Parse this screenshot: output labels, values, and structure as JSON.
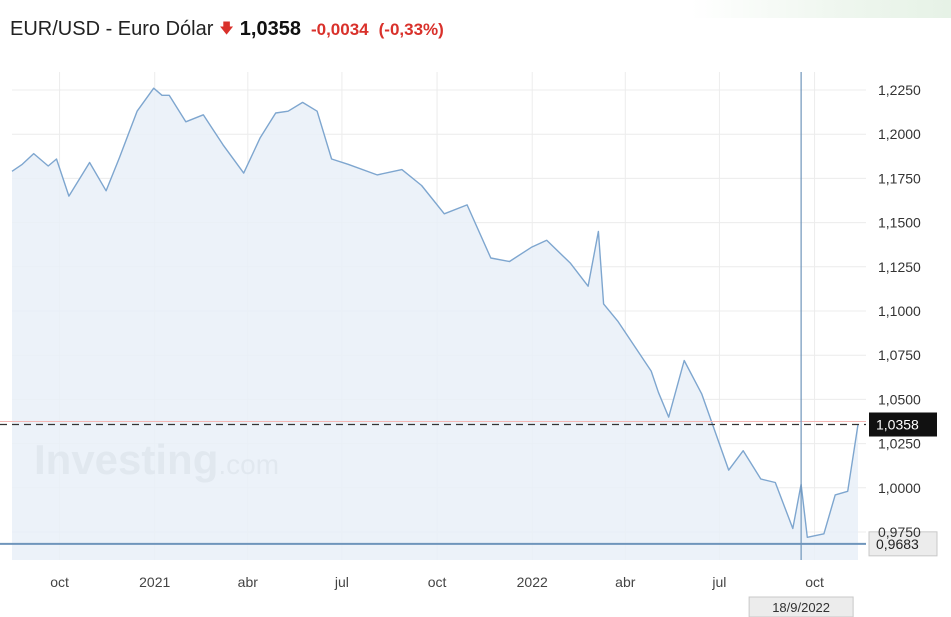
{
  "header": {
    "pair_name": "EUR/USD - Euro Dólar",
    "direction_icon": "down-arrow-icon",
    "price": "1,0358",
    "change": "-0,0034",
    "change_pct": "(-0,33%)"
  },
  "colors": {
    "line": "#7ea6cf",
    "area_fill": "#e9f0f8",
    "negative": "#d9312b",
    "support_line": "#6f95bb",
    "grid": "#ececec",
    "crosshair": "#6f95bb"
  },
  "watermark": {
    "brand": "Investing",
    "suffix": ".com"
  },
  "chart_data": {
    "type": "area",
    "x_tick_labels": [
      "oct",
      "2021",
      "abr",
      "jul",
      "oct",
      "2022",
      "abr",
      "jul",
      "oct"
    ],
    "x_tick_dates": [
      "2020-10-01",
      "2021-01-01",
      "2021-04-01",
      "2021-07-01",
      "2021-10-01",
      "2022-01-01",
      "2022-04-01",
      "2022-07-01",
      "2022-10-01"
    ],
    "y_tick_labels": [
      "1,2250",
      "1,2000",
      "1,1750",
      "1,1500",
      "1,1250",
      "1,1000",
      "1,0750",
      "1,0500",
      "1,0250",
      "1,0000",
      "0,9750"
    ],
    "y_ticks": [
      1.225,
      1.2,
      1.175,
      1.15,
      1.125,
      1.1,
      1.075,
      1.05,
      1.025,
      1.0,
      0.975
    ],
    "ylim": [
      0.9625,
      1.2325
    ],
    "grid": true,
    "series": [
      {
        "x": [
          "2020-08-16",
          "2020-08-26",
          "2020-09-06",
          "2020-09-20",
          "2020-09-28",
          "2020-10-10",
          "2020-10-30",
          "2020-11-15",
          "2020-11-28",
          "2020-12-15",
          "2020-12-31",
          "2021-01-08",
          "2021-01-15",
          "2021-01-31",
          "2021-02-17",
          "2021-03-08",
          "2021-03-28",
          "2021-04-13",
          "2021-04-28",
          "2021-05-10",
          "2021-05-24",
          "2021-06-07",
          "2021-06-21",
          "2021-07-07",
          "2021-08-04",
          "2021-08-28",
          "2021-09-16",
          "2021-10-08",
          "2021-10-30",
          "2021-11-22",
          "2021-12-10",
          "2021-12-31",
          "2022-01-15",
          "2022-02-07",
          "2022-02-24",
          "2022-03-06",
          "2022-03-11",
          "2022-03-25",
          "2022-04-26",
          "2022-05-03",
          "2022-05-13",
          "2022-05-28",
          "2022-06-14",
          "2022-07-10",
          "2022-07-24",
          "2022-08-10",
          "2022-08-24",
          "2022-09-10",
          "2022-09-18",
          "2022-09-24",
          "2022-10-10",
          "2022-10-21",
          "2022-11-02",
          "2022-11-12"
        ],
        "y": [
          1.179,
          1.183,
          1.189,
          1.182,
          1.186,
          1.165,
          1.184,
          1.168,
          1.187,
          1.213,
          1.226,
          1.222,
          1.222,
          1.207,
          1.211,
          1.194,
          1.178,
          1.198,
          1.212,
          1.213,
          1.218,
          1.213,
          1.186,
          1.183,
          1.177,
          1.18,
          1.171,
          1.155,
          1.16,
          1.13,
          1.128,
          1.136,
          1.14,
          1.127,
          1.114,
          1.145,
          1.104,
          1.094,
          1.066,
          1.054,
          1.04,
          1.072,
          1.053,
          1.01,
          1.021,
          1.005,
          1.003,
          0.977,
          1.002,
          0.972,
          0.974,
          0.996,
          0.998,
          1.0358
        ]
      }
    ],
    "current_value_label": "1,0358",
    "current_value": 1.0358,
    "support_value_label": "0,9683",
    "support_value": 0.9683,
    "crosshair_date": "2022-09-18",
    "crosshair_date_label": "18/9/2022"
  }
}
